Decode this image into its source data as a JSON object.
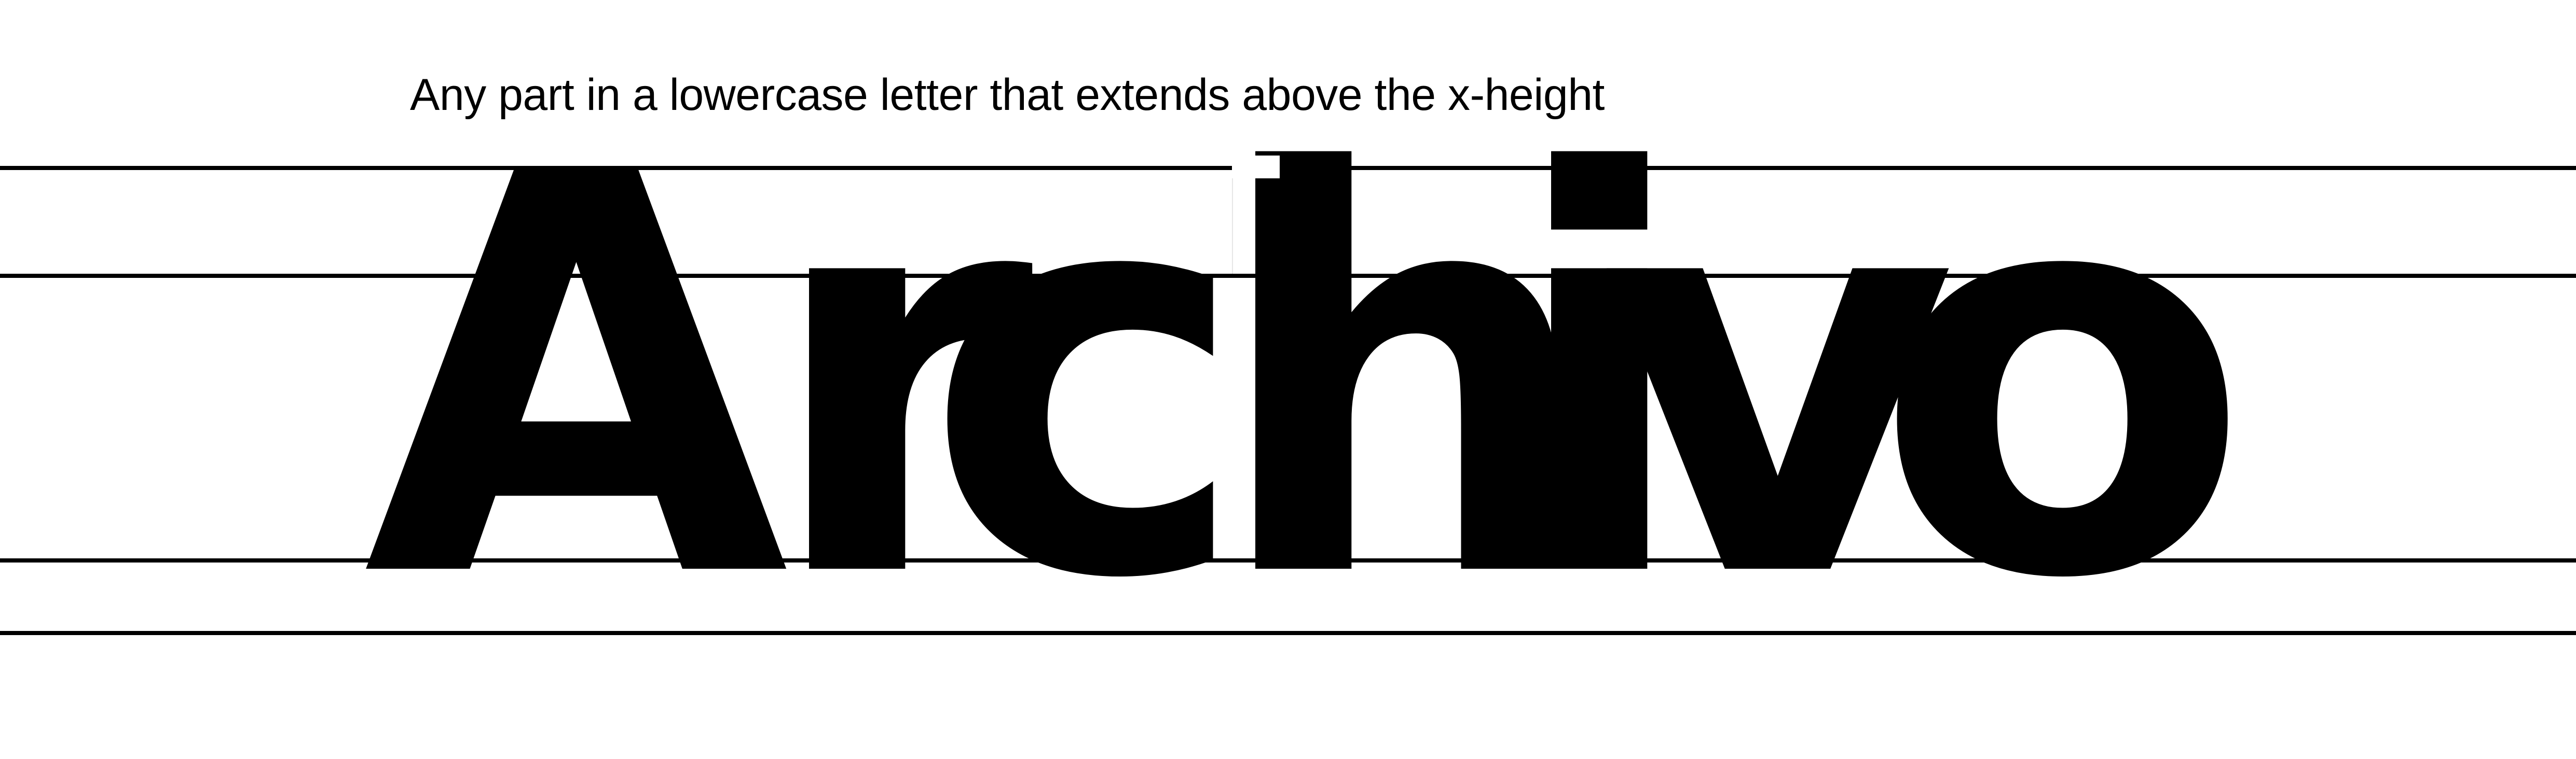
{
  "caption": "Any part in a lowercase letter that extends above the x-height",
  "specimen": {
    "word": "Archivo",
    "letters": [
      "A",
      "r",
      "c",
      "h",
      "i",
      "v",
      "o"
    ]
  },
  "colors": {
    "ink": "#000000",
    "background": "#ffffff"
  }
}
